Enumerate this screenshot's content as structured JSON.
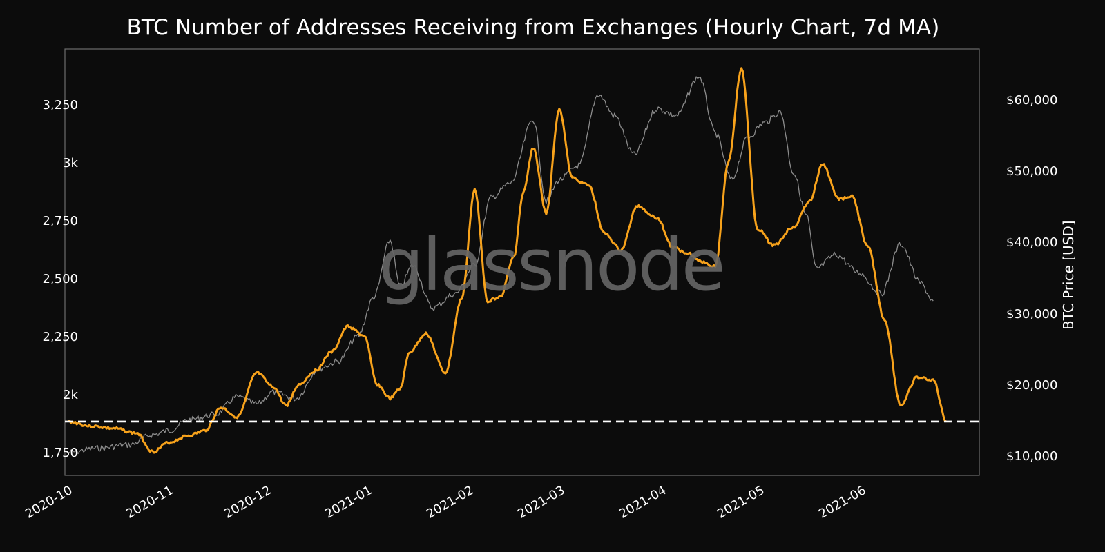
{
  "chart_data": {
    "type": "line",
    "title": "BTC Number of Addresses Receiving from Exchanges (Hourly Chart, 7d MA)",
    "xlabel": "",
    "ylabel_left": "",
    "ylabel_right": "BTC Price [USD]",
    "x_ticks": [
      "2020-10",
      "2020-11",
      "2020-12",
      "2021-01",
      "2021-02",
      "2021-03",
      "2021-04",
      "2021-05",
      "2021-06"
    ],
    "y_left_ticks": [
      "1,750",
      "2k",
      "2,250",
      "2,500",
      "2,750",
      "3k",
      "3,250"
    ],
    "y_right_ticks": [
      "$10,000",
      "$20,000",
      "$30,000",
      "$40,000",
      "$50,000",
      "$60,000"
    ],
    "ylim_left": [
      1660,
      3500
    ],
    "ylim_right": [
      8500,
      68500
    ],
    "grid": false,
    "legend": null,
    "reference_line": {
      "value": 1890,
      "style": "dashed",
      "color": "#ffffff",
      "axis": "left"
    },
    "series": [
      {
        "name": "Addresses Receiving from Exchanges (7d MA)",
        "axis": "left",
        "color": "#f7a21b",
        "x": [
          "2020-10-01",
          "2020-10-08",
          "2020-10-15",
          "2020-10-22",
          "2020-10-27",
          "2020-11-01",
          "2020-11-07",
          "2020-11-12",
          "2020-11-17",
          "2020-11-22",
          "2020-11-28",
          "2020-12-03",
          "2020-12-07",
          "2020-12-11",
          "2020-12-16",
          "2020-12-21",
          "2020-12-26",
          "2020-12-31",
          "2021-01-04",
          "2021-01-08",
          "2021-01-11",
          "2021-01-14",
          "2021-01-19",
          "2021-01-25",
          "2021-01-30",
          "2021-02-03",
          "2021-02-07",
          "2021-02-11",
          "2021-02-15",
          "2021-02-18",
          "2021-02-21",
          "2021-02-25",
          "2021-03-01",
          "2021-03-05",
          "2021-03-10",
          "2021-03-15",
          "2021-03-20",
          "2021-03-25",
          "2021-03-31",
          "2021-04-05",
          "2021-04-09",
          "2021-04-14",
          "2021-04-18",
          "2021-04-22",
          "2021-04-26",
          "2021-05-01",
          "2021-05-06",
          "2021-05-12",
          "2021-05-17",
          "2021-05-21",
          "2021-05-26",
          "2021-05-30",
          "2021-06-04",
          "2021-06-09",
          "2021-06-14",
          "2021-06-19",
          "2021-06-24",
          "2021-06-28"
        ],
        "values": [
          1890,
          1870,
          1860,
          1840,
          1760,
          1800,
          1830,
          1850,
          1950,
          1910,
          2100,
          2040,
          1960,
          2050,
          2110,
          2190,
          2300,
          2260,
          2050,
          1990,
          2030,
          2190,
          2270,
          2100,
          2420,
          2890,
          2410,
          2430,
          2600,
          2880,
          3070,
          2790,
          3240,
          2940,
          2910,
          2700,
          2630,
          2820,
          2770,
          2640,
          2620,
          2580,
          2560,
          3010,
          3410,
          2720,
          2650,
          2730,
          2840,
          3000,
          2850,
          2860,
          2640,
          2330,
          1960,
          2080,
          2070,
          1890
        ]
      },
      {
        "name": "BTC Price [USD]",
        "axis": "right",
        "color": "#8c8c8c",
        "x": [
          "2020-10-01",
          "2020-10-10",
          "2020-10-20",
          "2020-10-27",
          "2020-11-01",
          "2020-11-07",
          "2020-11-15",
          "2020-11-22",
          "2020-11-28",
          "2020-12-03",
          "2020-12-10",
          "2020-12-17",
          "2020-12-23",
          "2020-12-29",
          "2021-01-03",
          "2021-01-08",
          "2021-01-11",
          "2021-01-15",
          "2021-01-21",
          "2021-01-28",
          "2021-02-03",
          "2021-02-08",
          "2021-02-14",
          "2021-02-21",
          "2021-02-25",
          "2021-03-01",
          "2021-03-07",
          "2021-03-13",
          "2021-03-18",
          "2021-03-24",
          "2021-03-31",
          "2021-04-06",
          "2021-04-13",
          "2021-04-18",
          "2021-04-23",
          "2021-04-28",
          "2021-05-03",
          "2021-05-08",
          "2021-05-12",
          "2021-05-16",
          "2021-05-19",
          "2021-05-25",
          "2021-06-01",
          "2021-06-08",
          "2021-06-14",
          "2021-06-20",
          "2021-06-24"
        ],
        "values": [
          10700,
          11300,
          11800,
          13200,
          13800,
          15300,
          16000,
          18500,
          17500,
          19200,
          18300,
          22500,
          23500,
          27000,
          32500,
          40500,
          34000,
          37000,
          31000,
          33000,
          37000,
          46500,
          48500,
          57500,
          46000,
          49000,
          51000,
          61000,
          58000,
          52500,
          59000,
          58000,
          63500,
          55500,
          49000,
          55000,
          57000,
          58500,
          50000,
          44000,
          36500,
          38500,
          36000,
          33000,
          40000,
          34500,
          32000
        ]
      }
    ]
  },
  "watermark": "glassnode"
}
